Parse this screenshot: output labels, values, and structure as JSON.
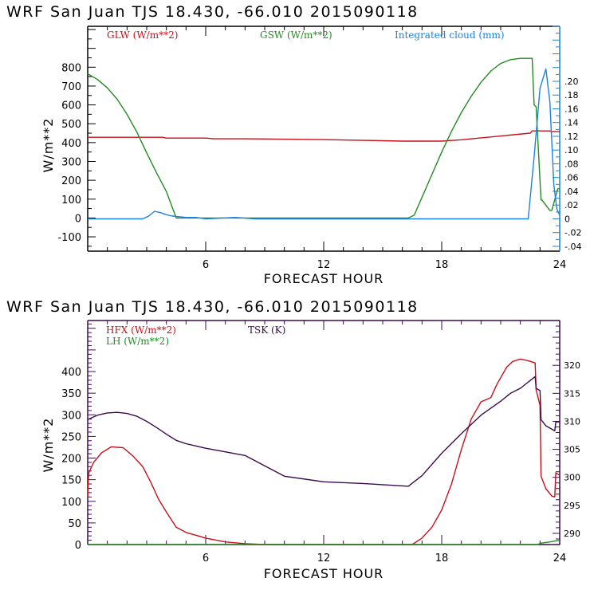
{
  "chart_data": [
    {
      "type": "line",
      "title": "WRF  San Juan TJS  18.430, -66.010  2015090118",
      "xlabel": "FORECAST HOUR",
      "ylabel": "W/m**2",
      "xlim": [
        0,
        24
      ],
      "ylim": [
        -176,
        1017
      ],
      "xticks": [
        6,
        12,
        18,
        24
      ],
      "yticks": [
        -100,
        0,
        100,
        200,
        300,
        400,
        500,
        600,
        700,
        800
      ],
      "ytick_labels": [
        "-100",
        "0",
        "100",
        "200",
        "300",
        "400",
        "500",
        "600",
        "700",
        "800"
      ],
      "y2lim": [
        -0.047,
        0.28
      ],
      "y2ticks": [
        -0.04,
        -0.02,
        0,
        0.02,
        0.04,
        0.06,
        0.08,
        0.1,
        0.12,
        0.14,
        0.16,
        0.18,
        0.2
      ],
      "y2tick_labels": [
        "-.04",
        "-.02",
        "0",
        ".02",
        ".04",
        ".06",
        ".08",
        ".10",
        ".12",
        ".14",
        ".16",
        ".18",
        ".20"
      ],
      "grid": false,
      "legend_placement": "top",
      "series": [
        {
          "name": "GLW (W/m**2)",
          "color": "#c8101a",
          "axis": "left",
          "x": [
            0,
            3.8,
            4,
            6,
            6.4,
            8,
            12,
            16,
            18,
            19,
            22.5,
            22.6,
            23.5,
            23.6,
            24
          ],
          "y": [
            428,
            428,
            424,
            424,
            420,
            420,
            416,
            408,
            408,
            415,
            450,
            462,
            462,
            458,
            458
          ]
        },
        {
          "name": "GSW (W/m**2)",
          "color": "#228b22",
          "axis": "left",
          "x": [
            0,
            0.5,
            1,
            1.5,
            2,
            2.5,
            3,
            3.5,
            4,
            4.5,
            16.3,
            16.6,
            17,
            17.5,
            18,
            18.5,
            19,
            19.5,
            20,
            20.5,
            21,
            21.5,
            22,
            22.6,
            22.7,
            22.8,
            23.05,
            23.1,
            23.5,
            23.6,
            23.9,
            24
          ],
          "y": [
            765,
            735,
            690,
            630,
            550,
            455,
            345,
            240,
            140,
            0,
            0,
            15,
            110,
            230,
            350,
            460,
            560,
            645,
            720,
            780,
            820,
            840,
            847,
            847,
            600,
            590,
            95,
            95,
            40,
            40,
            155,
            155
          ]
        },
        {
          "name": "Integrated cloud (mm)",
          "color": "#1a82e6",
          "axis": "right",
          "x": [
            0,
            2.8,
            3.1,
            3.4,
            3.7,
            4,
            4.3,
            5,
            5.5,
            6,
            7.5,
            8,
            8.5,
            22.4,
            22.7,
            23.0,
            23.3,
            23.5,
            23.7,
            23.85,
            24
          ],
          "y": [
            0,
            0,
            0.004,
            0.011,
            0.009,
            0.006,
            0.004,
            0.002,
            0.002,
            0.0,
            0.002,
            0.001,
            0,
            0,
            0.09,
            0.19,
            0.218,
            0.17,
            0.05,
            0.015,
            0.005
          ]
        }
      ]
    },
    {
      "type": "line",
      "title": "WRF  San Juan TJS  18.430, -66.010  2015090118",
      "xlabel": "FORECAST HOUR",
      "ylabel": "W/m**2",
      "xlim": [
        0,
        24
      ],
      "ylim": [
        0,
        518
      ],
      "xticks": [
        6,
        12,
        18,
        24
      ],
      "yticks": [
        0,
        50,
        100,
        150,
        200,
        250,
        300,
        350,
        400
      ],
      "ytick_labels": [
        "0",
        "50",
        "100",
        "150",
        "200",
        "250",
        "300",
        "350",
        "400"
      ],
      "y2lim": [
        288,
        328
      ],
      "y2ticks": [
        290,
        295,
        300,
        305,
        310,
        315,
        320
      ],
      "y2tick_labels": [
        "290",
        "295",
        "300",
        "305",
        "310",
        "315",
        "320"
      ],
      "grid": false,
      "legend_placement": "top-left",
      "series": [
        {
          "name": "HFX (W/m**2)",
          "color": "#c8101a",
          "axis": "left",
          "x": [
            0,
            0.05,
            0.3,
            0.7,
            1.2,
            1.8,
            2.3,
            2.8,
            3.2,
            3.6,
            4,
            4.5,
            5,
            6,
            7,
            8,
            9,
            16.5,
            17,
            17.5,
            18,
            18.5,
            19,
            19.5,
            20,
            20.5,
            20.8,
            21.3,
            21.6,
            22,
            22.4,
            22.75,
            22.8,
            23.0,
            23.05,
            23.3,
            23.6,
            23.75,
            23.8,
            24
          ],
          "y": [
            110,
            165,
            190,
            212,
            226,
            224,
            205,
            180,
            145,
            105,
            75,
            40,
            28,
            15,
            6,
            2,
            0,
            0,
            15,
            40,
            80,
            140,
            220,
            290,
            330,
            340,
            370,
            410,
            423,
            429,
            425,
            420,
            358,
            322,
            158,
            129,
            112,
            110,
            166,
            160
          ]
        },
        {
          "name": "LH (W/m**2)",
          "color": "#228b22",
          "axis": "left",
          "x": [
            0,
            22.9,
            23.0,
            23.5,
            24
          ],
          "y": [
            0,
            0,
            3,
            6,
            10
          ]
        },
        {
          "name": "TSK (K)",
          "color": "#3c0a4f",
          "axis": "right",
          "x": [
            0,
            0.5,
            1,
            1.5,
            2,
            2.5,
            3,
            3.5,
            4,
            4.5,
            5,
            6,
            8,
            10,
            12,
            14,
            16.3,
            17,
            18,
            19,
            20,
            21,
            21.5,
            22,
            22.75,
            22.8,
            23.0,
            23.05,
            23.3,
            23.5,
            23.75,
            23.8,
            24
          ],
          "y": [
            310.3,
            311.1,
            311.5,
            311.6,
            311.4,
            310.9,
            310.0,
            308.9,
            307.7,
            306.6,
            306.0,
            305.2,
            303.9,
            300.2,
            299.2,
            298.9,
            298.4,
            300.3,
            304.3,
            307.8,
            311.1,
            313.6,
            315.0,
            315.9,
            318.0,
            315.9,
            315.5,
            310.3,
            309.2,
            308.8,
            308.3,
            309.9,
            309.9
          ]
        }
      ]
    }
  ]
}
